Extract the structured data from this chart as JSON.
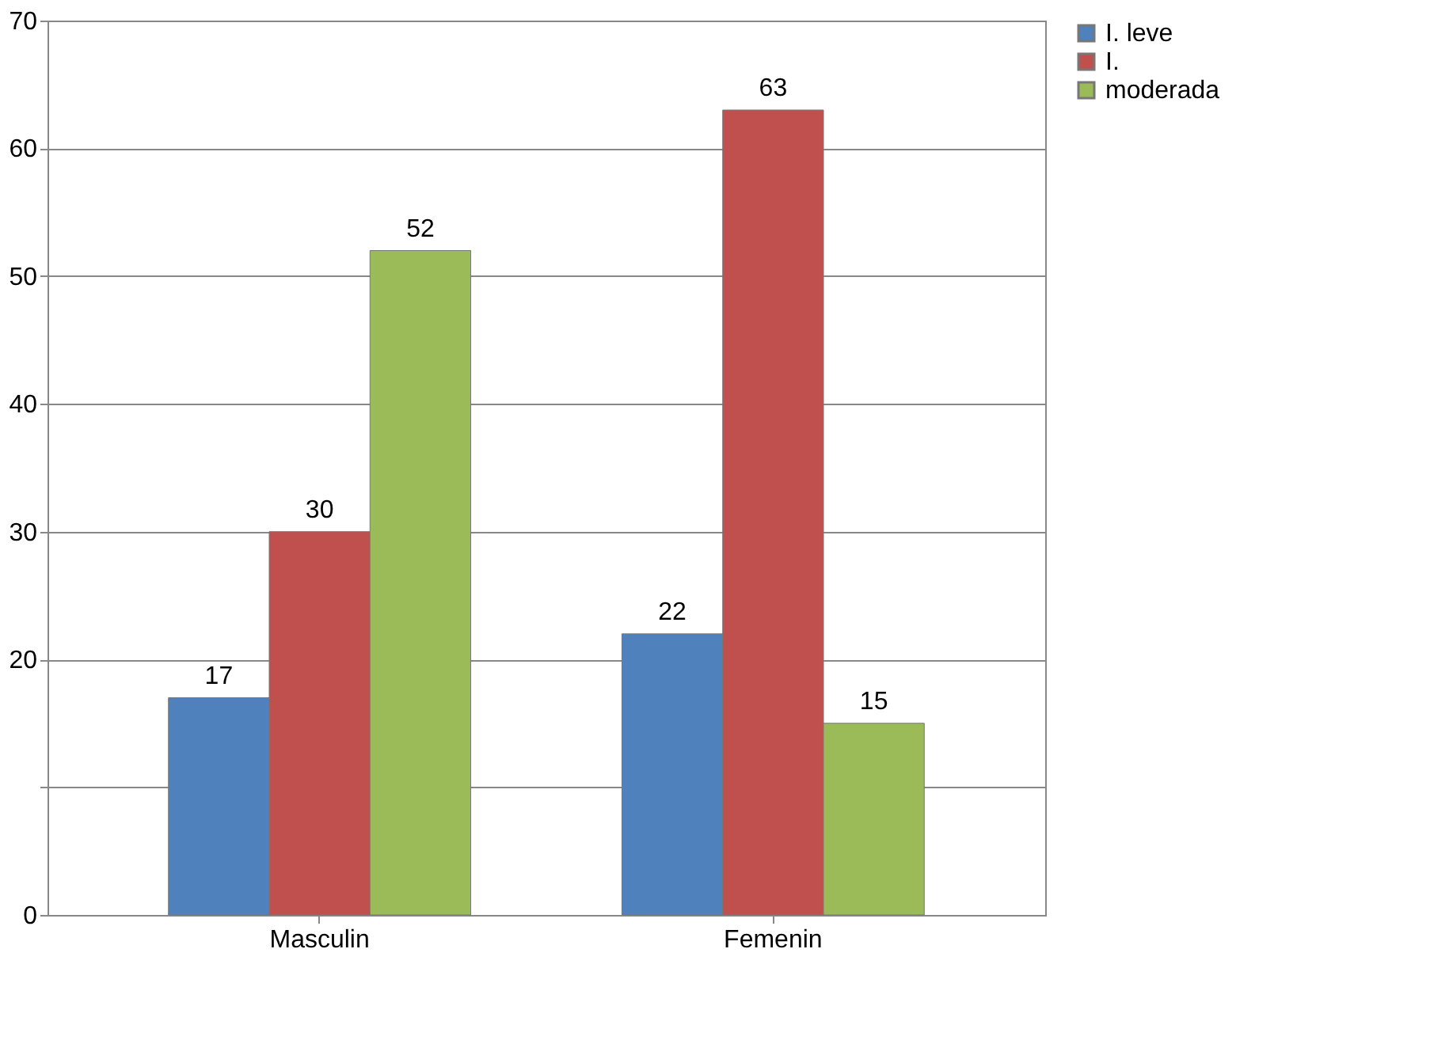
{
  "chart_data": {
    "type": "bar",
    "categories": [
      "Masculin",
      "Femenin"
    ],
    "series": [
      {
        "name": "I. leve",
        "color": "#4f81bd",
        "values": [
          17,
          22
        ]
      },
      {
        "name": "I.",
        "color": "#c0504d",
        "values": [
          30,
          63
        ]
      },
      {
        "name": "moderada",
        "color": "#9bbb59",
        "values": [
          52,
          15
        ]
      }
    ],
    "ylim": [
      0,
      70
    ],
    "yticks": [
      0,
      {
        "value": 10,
        "label": null
      },
      20,
      30,
      40,
      50,
      60,
      70
    ],
    "grid": "y",
    "legend": "right",
    "data_labels": true
  }
}
